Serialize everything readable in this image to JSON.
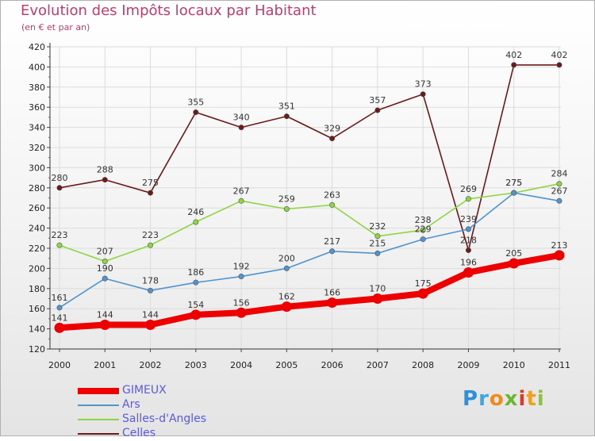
{
  "chart_data": {
    "type": "line",
    "title": "Evolution des Impôts locaux par Habitant",
    "subtitle": "(en € et par an)",
    "x": [
      "2000",
      "2001",
      "2002",
      "2003",
      "2004",
      "2005",
      "2006",
      "2007",
      "2008",
      "2009",
      "2010",
      "2011"
    ],
    "ylim": [
      120,
      420
    ],
    "yticks": [
      120,
      140,
      160,
      180,
      200,
      220,
      240,
      260,
      280,
      300,
      320,
      340,
      360,
      380,
      400,
      420
    ],
    "grid": true,
    "legend_position": "bottom-left",
    "series": [
      {
        "name": "GIMEUX",
        "color": "#ee0000",
        "emphasis": true,
        "values": [
          141,
          144,
          144,
          154,
          156,
          162,
          166,
          170,
          175,
          196,
          205,
          213
        ]
      },
      {
        "name": "Ars",
        "color": "#4f94cd",
        "values": [
          161,
          190,
          178,
          186,
          192,
          200,
          217,
          215,
          229,
          239,
          275,
          267
        ]
      },
      {
        "name": "Salles-d'Angles",
        "color": "#8dd641",
        "values": [
          223,
          207,
          223,
          246,
          267,
          259,
          263,
          232,
          238,
          269,
          275,
          284
        ]
      },
      {
        "name": "Celles",
        "color": "#6b1a1a",
        "values": [
          280,
          288,
          275,
          355,
          340,
          351,
          329,
          357,
          373,
          218,
          402,
          402
        ]
      }
    ],
    "labels": [
      {
        "series": "GIMEUX",
        "points": [
          "141",
          "144",
          "144",
          "154",
          "156",
          "162",
          "166",
          "170",
          "175",
          "196",
          "205",
          "213"
        ]
      },
      {
        "series": "Ars",
        "points": [
          "161",
          "190",
          "178",
          "186",
          "192",
          "200",
          "217",
          "215",
          "229",
          "239",
          "275",
          "267"
        ]
      },
      {
        "series": "Salles-d'Angles",
        "points": [
          "223",
          "207",
          "223",
          "246",
          "267",
          "259",
          "263",
          "232",
          "238",
          "269",
          "275",
          "284"
        ]
      },
      {
        "series": "Celles",
        "points": [
          "280",
          "288",
          "275",
          "355",
          "340",
          "351",
          "329",
          "357",
          "373",
          "218",
          "402",
          "402"
        ]
      }
    ]
  },
  "logo": {
    "letters": [
      "P",
      "r",
      "o",
      "x",
      "i",
      "t",
      "i"
    ],
    "colors": [
      "#2f8fd8",
      "#3aa7e6",
      "#f08a1c",
      "#6ab82e",
      "#d93a2a",
      "#f0a020",
      "#8ac43c"
    ]
  }
}
